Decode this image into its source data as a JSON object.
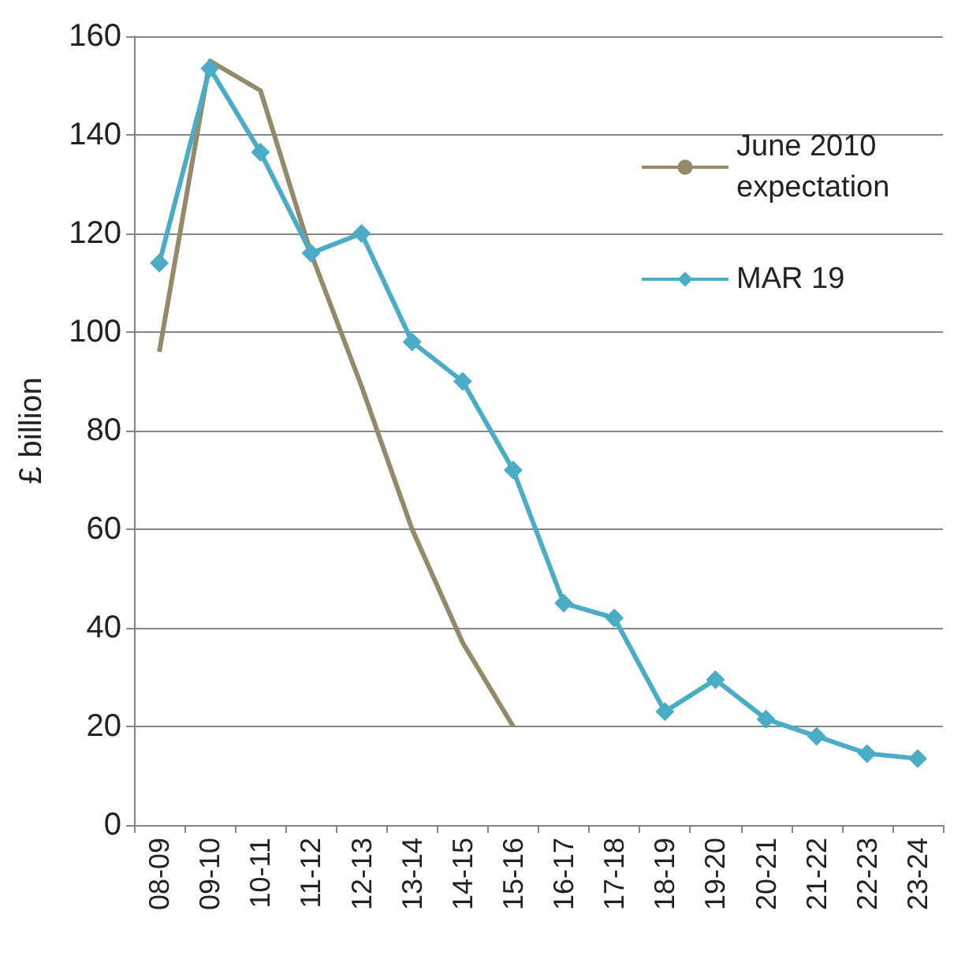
{
  "chart_data": {
    "type": "line",
    "ylabel": "£ billion",
    "categories": [
      "08-09",
      "09-10",
      "10-11",
      "11-12",
      "12-13",
      "13-14",
      "14-15",
      "15-16",
      "16-17",
      "17-18",
      "18-19",
      "19-20",
      "20-21",
      "21-22",
      "22-23",
      "23-24"
    ],
    "series": [
      {
        "name": "June 2010 expectation",
        "color": "#948a6a",
        "marker": "none",
        "values": [
          96,
          155,
          149,
          116,
          89,
          60,
          37,
          20,
          null,
          null,
          null,
          null,
          null,
          null,
          null,
          null
        ]
      },
      {
        "name": "MAR 19",
        "color": "#4bacc6",
        "marker": "diamond",
        "values": [
          114,
          153.5,
          136.5,
          116,
          120,
          98,
          90,
          72,
          45,
          42,
          23,
          29.5,
          21.5,
          18,
          14.5,
          13.5
        ]
      }
    ],
    "ylim": [
      0,
      160
    ],
    "yticks": [
      0,
      20,
      40,
      60,
      80,
      100,
      120,
      140,
      160
    ],
    "grid": "y",
    "legend": "right",
    "line_style": "solid"
  }
}
